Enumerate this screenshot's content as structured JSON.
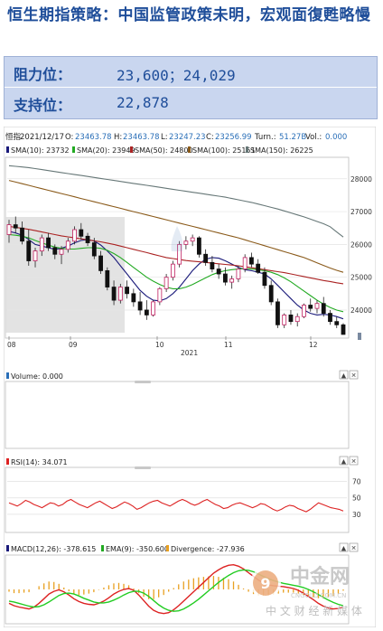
{
  "article": {
    "title": "恒生期指策略：中国监管政策未明，宏观面復甦略慢",
    "levels": [
      {
        "label": "阻力位：",
        "value": "23,600；24,029"
      },
      {
        "label": "支持位：",
        "value": "22,878"
      }
    ]
  },
  "ohlc_bar": {
    "symbol": "恒指",
    "date": "2021/12/17",
    "open_label": "O:",
    "open": "23463.78",
    "high_label": "H:",
    "high": "23463.78",
    "low_label": "L:",
    "low": "23247.23",
    "close_label": "C:",
    "close": "23256.99",
    "turnover_label": "Turn.:",
    "turnover": "51.27B",
    "vol_label": "Vol.:",
    "vol": "0.000"
  },
  "indicators": {
    "sma": [
      {
        "label": "SMA(10): 23732",
        "color": "#1a1a7a"
      },
      {
        "label": "SMA(20): 23949",
        "color": "#22aa22"
      },
      {
        "label": "SMA(50): 24800",
        "color": "#aa2222"
      },
      {
        "label": "SMA(100): 25151",
        "color": "#8a5a1a"
      },
      {
        "label": "SMA(150): 26225",
        "color": "#667777"
      }
    ],
    "volume_label": "Volume: 0.000",
    "rsi_label": "RSI(14): 34.071",
    "macd_labels": [
      "MACD(12,26): -378.615",
      "EMA(9): -350.600",
      "Divergence: -27.936"
    ]
  },
  "watermark": {
    "brand": "中金网",
    "site": "CNGOLD.COM.CN",
    "slogan": "中 文 财 经 新 媒 体"
  },
  "chart_data": [
    {
      "type": "candlestick",
      "title": "",
      "x_ticks": [
        "08",
        "09",
        "10",
        "11",
        "12"
      ],
      "year_label": "2021",
      "y_ticks": [
        24000,
        25000,
        26000,
        27000,
        28000
      ],
      "ylim": [
        23200,
        28600
      ],
      "candles": [
        {
          "o": 26300,
          "h": 26750,
          "l": 26050,
          "c": 26600
        },
        {
          "o": 26600,
          "h": 26850,
          "l": 26350,
          "c": 26500
        },
        {
          "o": 26500,
          "h": 26700,
          "l": 26000,
          "c": 26100
        },
        {
          "o": 26100,
          "h": 26450,
          "l": 25350,
          "c": 25500
        },
        {
          "o": 25500,
          "h": 25900,
          "l": 25300,
          "c": 25800
        },
        {
          "o": 25800,
          "h": 26300,
          "l": 25650,
          "c": 26200
        },
        {
          "o": 26200,
          "h": 26350,
          "l": 25800,
          "c": 25900
        },
        {
          "o": 25900,
          "h": 26000,
          "l": 25550,
          "c": 25700
        },
        {
          "o": 25700,
          "h": 25950,
          "l": 25400,
          "c": 25850
        },
        {
          "o": 25850,
          "h": 26200,
          "l": 25750,
          "c": 26100
        },
        {
          "o": 26100,
          "h": 26550,
          "l": 26000,
          "c": 26450
        },
        {
          "o": 26450,
          "h": 26650,
          "l": 26150,
          "c": 26250
        },
        {
          "o": 26250,
          "h": 26350,
          "l": 25950,
          "c": 26050
        },
        {
          "o": 26050,
          "h": 26200,
          "l": 25550,
          "c": 25650
        },
        {
          "o": 25650,
          "h": 25800,
          "l": 25100,
          "c": 25200
        },
        {
          "o": 25200,
          "h": 25300,
          "l": 24600,
          "c": 24700
        },
        {
          "o": 24700,
          "h": 24900,
          "l": 24150,
          "c": 24300
        },
        {
          "o": 24300,
          "h": 24800,
          "l": 24200,
          "c": 24700
        },
        {
          "o": 24700,
          "h": 24900,
          "l": 24350,
          "c": 24500
        },
        {
          "o": 24500,
          "h": 24650,
          "l": 24100,
          "c": 24250
        },
        {
          "o": 24250,
          "h": 24550,
          "l": 23850,
          "c": 24000
        },
        {
          "o": 24000,
          "h": 24300,
          "l": 23700,
          "c": 23850
        },
        {
          "o": 23850,
          "h": 24300,
          "l": 23800,
          "c": 24250
        },
        {
          "o": 24250,
          "h": 24700,
          "l": 24150,
          "c": 24650
        },
        {
          "o": 24650,
          "h": 25100,
          "l": 24550,
          "c": 25000
        },
        {
          "o": 25000,
          "h": 25500,
          "l": 24900,
          "c": 25400
        },
        {
          "o": 25400,
          "h": 26100,
          "l": 25300,
          "c": 26000
        },
        {
          "o": 26000,
          "h": 26250,
          "l": 25850,
          "c": 26100
        },
        {
          "o": 26100,
          "h": 26300,
          "l": 25950,
          "c": 26200
        },
        {
          "o": 26200,
          "h": 26250,
          "l": 25600,
          "c": 25700
        },
        {
          "o": 25700,
          "h": 25850,
          "l": 25350,
          "c": 25450
        },
        {
          "o": 25450,
          "h": 25650,
          "l": 25150,
          "c": 25250
        },
        {
          "o": 25250,
          "h": 25400,
          "l": 24950,
          "c": 25100
        },
        {
          "o": 25100,
          "h": 25300,
          "l": 24750,
          "c": 24850
        },
        {
          "o": 24850,
          "h": 25050,
          "l": 24650,
          "c": 24950
        },
        {
          "o": 24950,
          "h": 25350,
          "l": 24850,
          "c": 25250
        },
        {
          "o": 25250,
          "h": 25700,
          "l": 25150,
          "c": 25600
        },
        {
          "o": 25600,
          "h": 25750,
          "l": 25300,
          "c": 25400
        },
        {
          "o": 25400,
          "h": 25550,
          "l": 25100,
          "c": 25150
        },
        {
          "o": 25150,
          "h": 25300,
          "l": 24650,
          "c": 24750
        },
        {
          "o": 24750,
          "h": 24900,
          "l": 24150,
          "c": 24250
        },
        {
          "o": 24250,
          "h": 24350,
          "l": 23450,
          "c": 23550
        },
        {
          "o": 23550,
          "h": 23900,
          "l": 23450,
          "c": 23850
        },
        {
          "o": 23850,
          "h": 24000,
          "l": 23550,
          "c": 23650
        },
        {
          "o": 23650,
          "h": 23900,
          "l": 23500,
          "c": 23800
        },
        {
          "o": 23800,
          "h": 24200,
          "l": 23750,
          "c": 24150
        },
        {
          "o": 24150,
          "h": 24350,
          "l": 23950,
          "c": 24050
        },
        {
          "o": 24050,
          "h": 24300,
          "l": 23900,
          "c": 24200
        },
        {
          "o": 24200,
          "h": 24400,
          "l": 23800,
          "c": 23900
        },
        {
          "o": 23900,
          "h": 24000,
          "l": 23550,
          "c": 23650
        },
        {
          "o": 23650,
          "h": 23800,
          "l": 23450,
          "c": 23550
        },
        {
          "o": 23550,
          "h": 23600,
          "l": 23250,
          "c": 23257
        }
      ],
      "sma_series": [
        {
          "name": "SMA(10)",
          "values": [
            26400,
            26350,
            26280,
            26150,
            26000,
            25950,
            25900,
            25850,
            25880,
            25950,
            26050,
            26120,
            26150,
            26100,
            25980,
            25800,
            25600,
            25350,
            25100,
            24850,
            24600,
            24420,
            24300,
            24280,
            24350,
            24500,
            24700,
            24950,
            25200,
            25400,
            25550,
            25600,
            25580,
            25500,
            25400,
            25300,
            25230,
            25200,
            25150,
            25100,
            24950,
            24750,
            24550,
            24350,
            24150,
            24000,
            23900,
            23850,
            23870,
            23850,
            23800,
            23732
          ]
        },
        {
          "name": "SMA(20)",
          "values": [
            26300,
            26280,
            26250,
            26200,
            26120,
            26050,
            25980,
            25920,
            25880,
            25860,
            25860,
            25880,
            25900,
            25900,
            25880,
            25820,
            25720,
            25600,
            25450,
            25300,
            25150,
            25000,
            24880,
            24780,
            24700,
            24650,
            24650,
            24700,
            24780,
            24880,
            24980,
            25080,
            25150,
            25200,
            25230,
            25250,
            25260,
            25250,
            25230,
            25200,
            25150,
            25080,
            24980,
            24860,
            24720,
            24580,
            24440,
            24300,
            24180,
            24080,
            24000,
            23949
          ]
        },
        {
          "name": "SMA(50)",
          "values": [
            26550,
            26520,
            26490,
            26460,
            26420,
            26380,
            26340,
            26300,
            26260,
            26230,
            26200,
            26170,
            26140,
            26110,
            26080,
            26040,
            26000,
            25950,
            25900,
            25850,
            25800,
            25750,
            25700,
            25650,
            25600,
            25570,
            25540,
            25510,
            25490,
            25470,
            25450,
            25430,
            25410,
            25390,
            25370,
            25350,
            25320,
            25290,
            25260,
            25230,
            25200,
            25170,
            25140,
            25100,
            25060,
            25020,
            24980,
            24940,
            24900,
            24870,
            24830,
            24800
          ]
        },
        {
          "name": "SMA(100)",
          "values": [
            27950,
            27900,
            27850,
            27800,
            27750,
            27700,
            27650,
            27600,
            27550,
            27500,
            27450,
            27400,
            27350,
            27300,
            27250,
            27200,
            27150,
            27100,
            27050,
            27000,
            26950,
            26900,
            26850,
            26800,
            26750,
            26700,
            26650,
            26600,
            26550,
            26500,
            26450,
            26400,
            26350,
            26300,
            26250,
            26200,
            26140,
            26080,
            26020,
            25960,
            25900,
            25840,
            25780,
            25720,
            25660,
            25600,
            25520,
            25440,
            25360,
            25280,
            25210,
            25151
          ]
        },
        {
          "name": "SMA(150)",
          "values": [
            28400,
            28380,
            28360,
            28340,
            28310,
            28280,
            28250,
            28220,
            28190,
            28160,
            28130,
            28100,
            28070,
            28040,
            28010,
            27980,
            27950,
            27920,
            27890,
            27860,
            27830,
            27800,
            27770,
            27740,
            27710,
            27680,
            27650,
            27620,
            27590,
            27560,
            27530,
            27500,
            27470,
            27440,
            27400,
            27360,
            27320,
            27280,
            27230,
            27180,
            27130,
            27080,
            27020,
            26960,
            26900,
            26840,
            26770,
            26700,
            26630,
            26540,
            26380,
            26225
          ]
        }
      ]
    },
    {
      "type": "bar",
      "title": "",
      "series": [
        {
          "name": "Volume",
          "values": []
        }
      ]
    },
    {
      "type": "line",
      "title": "",
      "y_ticks": [
        30,
        50,
        70
      ],
      "ylim": [
        10,
        85
      ],
      "series": [
        {
          "name": "RSI(14)",
          "values": [
            44,
            42,
            40,
            43,
            47,
            45,
            42,
            40,
            38,
            41,
            44,
            43,
            40,
            42,
            46,
            48,
            45,
            42,
            40,
            38,
            41,
            44,
            46,
            43,
            40,
            37,
            39,
            42,
            45,
            43,
            40,
            36,
            38,
            41,
            44,
            46,
            47,
            44,
            42,
            40,
            43,
            46,
            48,
            46,
            43,
            41,
            43,
            46,
            48,
            45,
            42,
            40,
            37,
            38,
            41,
            43,
            44,
            42,
            40,
            38,
            40,
            43,
            42,
            39,
            36,
            34,
            36,
            39,
            41,
            40,
            37,
            35,
            33,
            36,
            40,
            44,
            42,
            40,
            38,
            37,
            36,
            34
          ]
        }
      ]
    },
    {
      "type": "line",
      "title": "",
      "ylim": [
        -700,
        700
      ],
      "series": [
        {
          "name": "MACD",
          "values": [
            -300,
            -350,
            -380,
            -400,
            -420,
            -380,
            -300,
            -200,
            -100,
            -40,
            -10,
            -50,
            -120,
            -200,
            -260,
            -300,
            -320,
            -330,
            -300,
            -250,
            -180,
            -100,
            -40,
            0,
            20,
            -20,
            -120,
            -240,
            -360,
            -450,
            -500,
            -520,
            -500,
            -440,
            -350,
            -250,
            -150,
            -50,
            50,
            150,
            250,
            350,
            420,
            480,
            520,
            530,
            500,
            440,
            360,
            280,
            200,
            140,
            100,
            80,
            70,
            60,
            40,
            20,
            -20,
            -80,
            -150,
            -220,
            -300,
            -360,
            -400,
            -420,
            -410,
            -379
          ]
        },
        {
          "name": "EMA(9)",
          "values": [
            -250,
            -270,
            -300,
            -330,
            -360,
            -380,
            -370,
            -330,
            -270,
            -200,
            -130,
            -90,
            -80,
            -100,
            -140,
            -190,
            -230,
            -270,
            -290,
            -290,
            -270,
            -230,
            -180,
            -120,
            -70,
            -40,
            -40,
            -80,
            -150,
            -240,
            -330,
            -400,
            -450,
            -470,
            -460,
            -420,
            -360,
            -290,
            -210,
            -120,
            -30,
            60,
            150,
            230,
            300,
            360,
            400,
            420,
            410,
            380,
            330,
            280,
            230,
            190,
            160,
            130,
            110,
            90,
            70,
            40,
            0,
            -50,
            -110,
            -170,
            -230,
            -280,
            -320,
            -351
          ]
        },
        {
          "name": "Divergence",
          "values": [
            -50,
            -80,
            -80,
            -70,
            -60,
            0,
            70,
            130,
            170,
            160,
            120,
            40,
            -40,
            -100,
            -120,
            -110,
            -90,
            -60,
            -10,
            40,
            90,
            130,
            140,
            120,
            90,
            20,
            -80,
            -160,
            -210,
            -210,
            -170,
            -120,
            -50,
            30,
            110,
            170,
            210,
            240,
            260,
            270,
            280,
            290,
            270,
            250,
            220,
            170,
            100,
            20,
            -50,
            -100,
            -130,
            -140,
            -130,
            -110,
            -90,
            -70,
            -70,
            -70,
            -90,
            -120,
            -150,
            -170,
            -190,
            -190,
            -170,
            -140,
            -90,
            -28
          ]
        }
      ]
    }
  ]
}
